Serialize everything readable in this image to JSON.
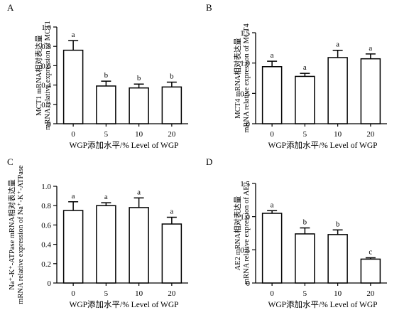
{
  "figure": {
    "x_title": "WGP添加水平/%    Level of WGP"
  },
  "chart_data": [
    {
      "type": "bar",
      "panel": "A",
      "categories": [
        "0",
        "5",
        "10",
        "20"
      ],
      "values": [
        0.76,
        0.39,
        0.37,
        0.38
      ],
      "errors": [
        0.1,
        0.05,
        0.04,
        0.05
      ],
      "letters": [
        "a",
        "b",
        "b",
        "b"
      ],
      "ylim": [
        0,
        1.0
      ],
      "yticks": [
        "0",
        "0.2",
        "0.4",
        "0.6",
        "0.8",
        "1.0"
      ],
      "ylabel_cn": "MCT1 mRNA相对表达量",
      "ylabel_en": "mRNA relative expression of MCT1",
      "xlabel": "WGP添加水平/%    Level of WGP"
    },
    {
      "type": "bar",
      "panel": "B",
      "categories": [
        "0",
        "5",
        "10",
        "20"
      ],
      "values": [
        0.94,
        0.78,
        1.09,
        1.07
      ],
      "errors": [
        0.09,
        0.05,
        0.12,
        0.08
      ],
      "letters": [
        "a",
        "a",
        "a",
        "a"
      ],
      "ylim": [
        0,
        1.5
      ],
      "yticks": [
        "0",
        "0.5",
        "1.0",
        "1.5"
      ],
      "ylabel_cn": "MCT4 mRNA相对表达量",
      "ylabel_en": "mRNA relative expression of MCT4",
      "xlabel": "WGP添加水平/%    Level of WGP"
    },
    {
      "type": "bar",
      "panel": "C",
      "categories": [
        "0",
        "5",
        "10",
        "20"
      ],
      "values": [
        0.75,
        0.8,
        0.78,
        0.61
      ],
      "errors": [
        0.09,
        0.03,
        0.1,
        0.07
      ],
      "letters": [
        "a",
        "a",
        "a",
        "a"
      ],
      "ylim": [
        0,
        1.0
      ],
      "yticks": [
        "0",
        "0.2",
        "0.4",
        "0.6",
        "0.8",
        "1.0"
      ],
      "ylabel_cn": "Na⁺-K⁺-ATPase mRNA相对表达量",
      "ylabel_en": "mRNA relative expression of Na⁺-K⁺-ATPase",
      "xlabel": "WGP添加水平/%    Level of WGP"
    },
    {
      "type": "bar",
      "panel": "D",
      "categories": [
        "0",
        "5",
        "10",
        "20"
      ],
      "values": [
        1.05,
        0.74,
        0.73,
        0.36
      ],
      "errors": [
        0.04,
        0.09,
        0.07,
        0.02
      ],
      "letters": [
        "a",
        "b",
        "b",
        "c"
      ],
      "ylim": [
        0,
        1.5
      ],
      "yticks": [
        "0",
        "0.5",
        "1.0",
        "1.5"
      ],
      "ylabel_cn": "AE2 mRNA相对表达量",
      "ylabel_en": "mRNA relative expression of AE2",
      "xlabel": "WGP添加水平/%    Level of WGP"
    }
  ]
}
